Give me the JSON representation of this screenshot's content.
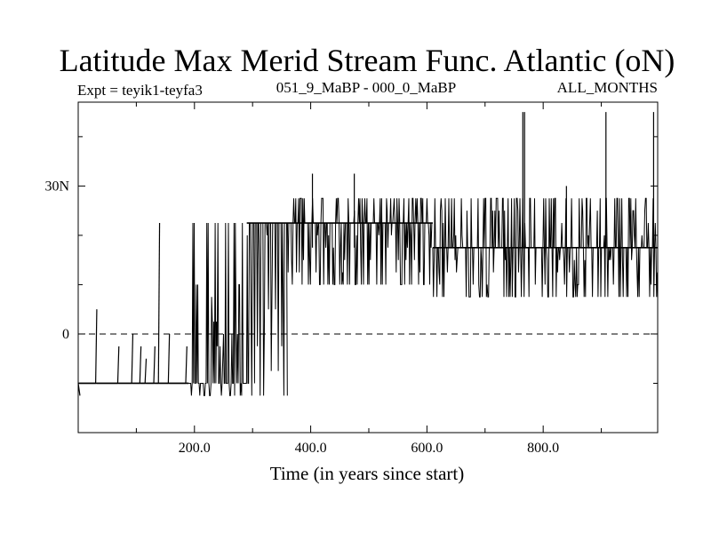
{
  "chart_data": {
    "type": "line",
    "title": "Latitude Max Merid Stream Func. Atlantic (oN)",
    "subtitle_left": "Expt = teyik1-teyfa3",
    "subtitle_center": "051_9_MaBP - 000_0_MaBP",
    "subtitle_right": "ALL_MONTHS",
    "xlabel": "Time (in years since start)",
    "ylabel": "",
    "xlim": [
      0,
      997
    ],
    "ylim": [
      -20,
      47
    ],
    "x_ticks": [
      {
        "value": 200,
        "label": "200.0"
      },
      {
        "value": 400,
        "label": "400.0"
      },
      {
        "value": 600,
        "label": "600.0"
      },
      {
        "value": 800,
        "label": "800.0"
      }
    ],
    "y_ticks": [
      {
        "value": 0,
        "label": "0"
      },
      {
        "value": 30,
        "label": "30N"
      }
    ],
    "y_minor_ticks": [
      -10,
      10,
      20,
      40
    ],
    "reference_line": {
      "value": 0,
      "style": "dashed"
    },
    "mean_segments": [
      {
        "x": [
          0,
          190
        ],
        "y": -10
      },
      {
        "x": [
          290,
          610
        ],
        "y": 22.5
      },
      {
        "x": [
          610,
          997
        ],
        "y": 17.5
      }
    ],
    "series": [
      {
        "name": "latitude_max",
        "color": "#000000",
        "segments": [
          {
            "x": [
              0,
              3
            ],
            "y": [
              -10,
              -12.5
            ]
          },
          {
            "x": [
              3,
              30
            ],
            "y": [
              -10,
              -10
            ]
          },
          {
            "x": [
              30,
              32
            ],
            "y": [
              -10,
              5
            ]
          },
          {
            "x": [
              32,
              68
            ],
            "y": [
              -10,
              -10
            ]
          },
          {
            "x": [
              68,
              70
            ],
            "y": [
              -10,
              -2.5
            ]
          },
          {
            "x": [
              70,
              92
            ],
            "y": [
              -10,
              -10
            ]
          },
          {
            "x": [
              92,
              94
            ],
            "y": [
              -10,
              0
            ]
          },
          {
            "x": [
              94,
              106
            ],
            "y": [
              -10,
              -10
            ]
          },
          {
            "x": [
              106,
              108
            ],
            "y": [
              -10,
              -2.5
            ]
          },
          {
            "x": [
              108,
              115
            ],
            "y": [
              -10,
              -10
            ]
          },
          {
            "x": [
              115,
              117
            ],
            "y": [
              -10,
              -5
            ]
          },
          {
            "x": [
              117,
              130
            ],
            "y": [
              -10,
              -10
            ]
          },
          {
            "x": [
              130,
              132
            ],
            "y": [
              -10,
              -2.5
            ]
          },
          {
            "x": [
              132,
              138
            ],
            "y": [
              -10,
              -10
            ]
          },
          {
            "x": [
              138,
              140
            ],
            "y": [
              -10,
              22.5
            ]
          },
          {
            "x": [
              140,
              155
            ],
            "y": [
              -10,
              -10
            ]
          },
          {
            "x": [
              155,
              157
            ],
            "y": [
              -10,
              0
            ]
          },
          {
            "x": [
              157,
              185
            ],
            "y": [
              -10,
              -10
            ]
          },
          {
            "x": [
              185,
              187
            ],
            "y": [
              -10,
              -2.5
            ]
          },
          {
            "x": [
              187,
              190
            ],
            "y": [
              -10,
              -10
            ]
          }
        ]
      }
    ],
    "noise_regions": [
      {
        "x": [
          190,
          295
        ],
        "low": -12.5,
        "high": 22.5,
        "base": -10,
        "seed": 11
      },
      {
        "x": [
          295,
          360
        ],
        "low": -12.5,
        "high": 22.5,
        "base": 22.5,
        "seed": 23
      },
      {
        "x": [
          360,
          610
        ],
        "low": 10,
        "high": 27.5,
        "base": 22.5,
        "seed": 37
      },
      {
        "x": [
          610,
          997
        ],
        "low": 7.5,
        "high": 27.5,
        "base": 17.5,
        "seed": 51
      }
    ],
    "spikes": [
      {
        "x": 403,
        "y": 32.5
      },
      {
        "x": 475,
        "y": 32.5
      },
      {
        "x": 765,
        "y": 45
      },
      {
        "x": 768,
        "y": 45
      },
      {
        "x": 840,
        "y": 30
      },
      {
        "x": 908,
        "y": 45
      },
      {
        "x": 990,
        "y": 45
      }
    ]
  }
}
